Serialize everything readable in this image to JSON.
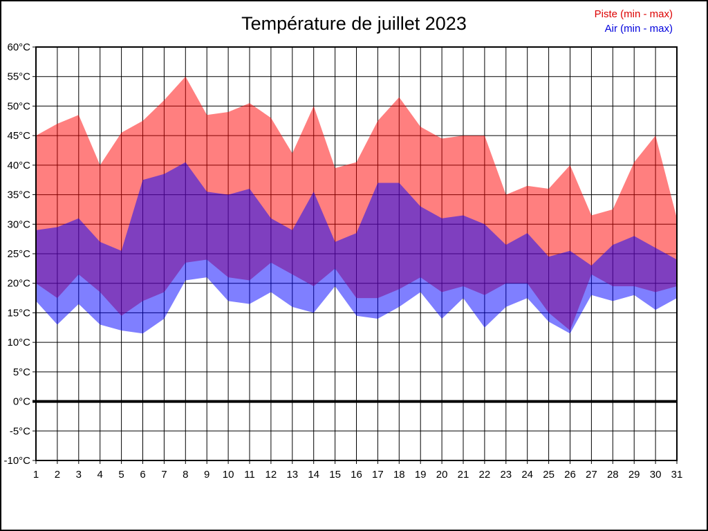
{
  "title": "Température de juillet 2023",
  "legend": [
    {
      "label": "Piste (min - max)",
      "color": "#dd0000"
    },
    {
      "label": "Air (min - max)",
      "color": "#0000dd"
    }
  ],
  "chart_data": {
    "type": "area",
    "title": "Température de juillet 2023",
    "xlabel": "",
    "ylabel": "",
    "xlim": [
      1,
      31
    ],
    "ylim": [
      -10,
      60
    ],
    "grid": true,
    "zero_line_value": 0,
    "legend_position": "top-right",
    "x": [
      1,
      2,
      3,
      4,
      5,
      6,
      7,
      8,
      9,
      10,
      11,
      12,
      13,
      14,
      15,
      16,
      17,
      18,
      19,
      20,
      21,
      22,
      23,
      24,
      25,
      26,
      27,
      28,
      29,
      30,
      31
    ],
    "x_tick_labels": [
      "1",
      "2",
      "3",
      "4",
      "5",
      "6",
      "7",
      "8",
      "9",
      "10",
      "11",
      "12",
      "13",
      "14",
      "15",
      "16",
      "17",
      "18",
      "19",
      "20",
      "21",
      "22",
      "23",
      "24",
      "25",
      "26",
      "27",
      "28",
      "29",
      "30",
      "31"
    ],
    "y_ticks": [
      {
        "value": 60,
        "label": "60°C"
      },
      {
        "value": 55,
        "label": "55°C"
      },
      {
        "value": 50,
        "label": "50°C"
      },
      {
        "value": 45,
        "label": "45°C"
      },
      {
        "value": 40,
        "label": "40°C"
      },
      {
        "value": 35,
        "label": "35°C"
      },
      {
        "value": 30,
        "label": "30°C"
      },
      {
        "value": 25,
        "label": "25°C"
      },
      {
        "value": 20,
        "label": "20°C"
      },
      {
        "value": 15,
        "label": "15°C"
      },
      {
        "value": 10,
        "label": "10°C"
      },
      {
        "value": 5,
        "label": "5°C"
      },
      {
        "value": 0,
        "label": "0°C"
      },
      {
        "value": -5,
        "label": "-5°C"
      },
      {
        "value": -10,
        "label": "-10°C"
      }
    ],
    "series": [
      {
        "name": "Piste (min - max)",
        "band": "min-max",
        "color": "#ff0000",
        "opacity": 0.5,
        "max": [
          45,
          47,
          48.5,
          40,
          45.5,
          47.5,
          51,
          55,
          48.5,
          49,
          50.5,
          48,
          42,
          50,
          39.5,
          40.5,
          47.5,
          51.5,
          46.5,
          44.5,
          45,
          45,
          35,
          36.5,
          36,
          40,
          31.5,
          32.5,
          40.5,
          45,
          31
        ],
        "min": [
          20,
          17.5,
          21.5,
          18.5,
          14.5,
          17,
          18.5,
          23.5,
          24,
          21,
          20.5,
          23.5,
          21.5,
          19.5,
          22.5,
          17.5,
          17.5,
          19,
          21,
          18.5,
          19.5,
          18,
          20,
          20,
          15,
          12,
          21.5,
          19.5,
          19.5,
          18.5,
          19.5
        ]
      },
      {
        "name": "Air (min - max)",
        "band": "min-max",
        "color": "#0000ff",
        "opacity": 0.5,
        "max": [
          29,
          29.5,
          31,
          27,
          25.5,
          37.5,
          38.5,
          40.5,
          35.5,
          35,
          36,
          31,
          29,
          35.5,
          27,
          28.5,
          37,
          37,
          33,
          31,
          31.5,
          30,
          26.5,
          28.5,
          24.5,
          25.5,
          23,
          26.5,
          28,
          26,
          24
        ],
        "min": [
          17,
          13,
          16.5,
          13,
          12,
          11.5,
          14,
          20.5,
          21,
          17,
          16.5,
          18.5,
          16,
          15,
          19.5,
          14.5,
          14,
          16,
          18.5,
          14,
          17.5,
          12.5,
          16,
          17.5,
          13.5,
          11.5,
          18,
          17,
          18,
          15.5,
          17.5
        ]
      }
    ]
  }
}
